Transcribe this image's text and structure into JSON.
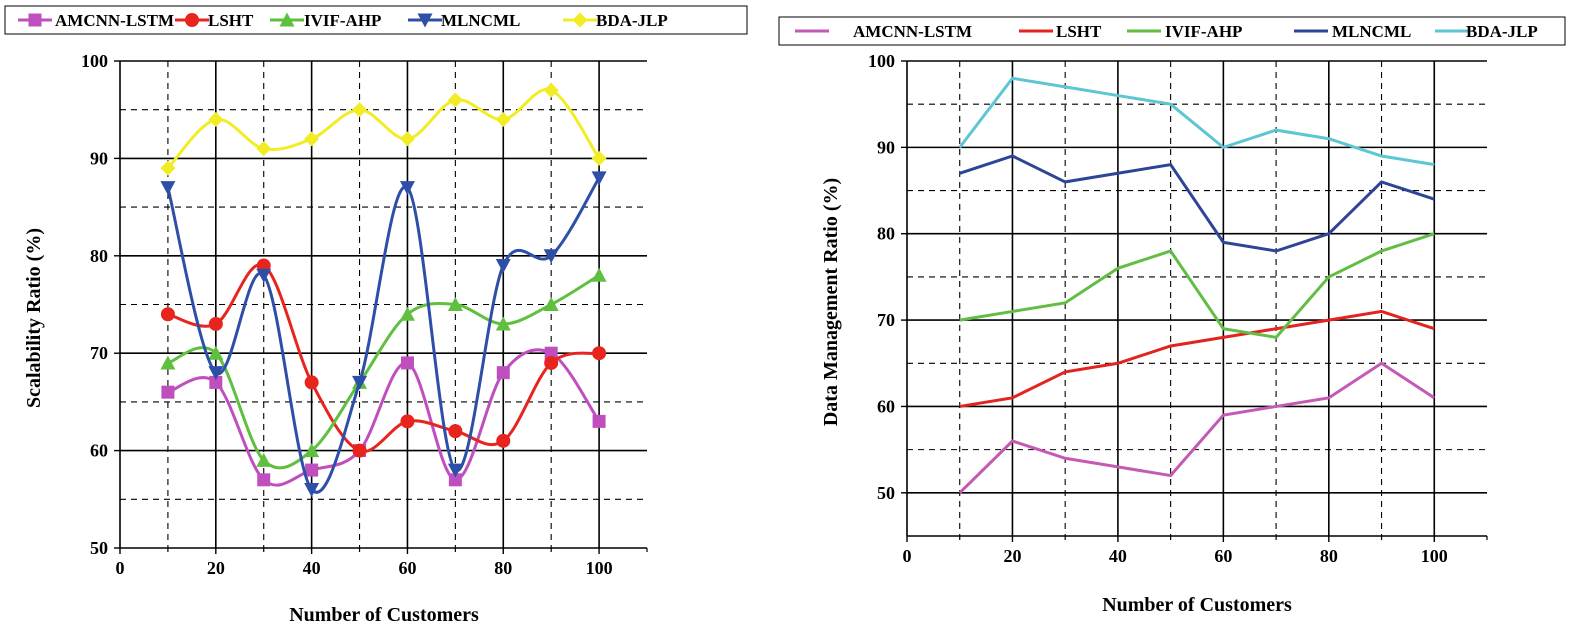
{
  "chart_data": [
    {
      "type": "line",
      "smooth": true,
      "title": "",
      "xlabel": "Number of Customers",
      "ylabel": "Scalability Ratio (%)",
      "xlim": [
        0,
        110
      ],
      "ylim": [
        50,
        100
      ],
      "xticks": [
        "0",
        "20",
        "40",
        "60",
        "80",
        "100"
      ],
      "xtick_values": [
        0,
        20,
        40,
        60,
        80,
        100
      ],
      "yticks": [
        "50",
        "60",
        "70",
        "80",
        "90",
        "100"
      ],
      "ytick_values": [
        50,
        60,
        70,
        80,
        90,
        100
      ],
      "grid": "solid major lines at 10-unit steps; dashed minor lines",
      "legend_position": "top",
      "x": [
        10,
        20,
        30,
        40,
        50,
        60,
        70,
        80,
        90,
        100
      ],
      "series": [
        {
          "name": "AMCNN-LSTM",
          "color": "#bf4fbf",
          "marker": "square",
          "values": [
            66,
            67,
            57,
            58,
            60,
            69,
            57,
            68,
            70,
            63
          ]
        },
        {
          "name": "LSHT",
          "color": "#e8241f",
          "marker": "circle",
          "values": [
            74,
            73,
            79,
            67,
            60,
            63,
            62,
            61,
            69,
            70
          ]
        },
        {
          "name": "IVIF-AHP",
          "color": "#5fbf3f",
          "marker": "triangle-up",
          "values": [
            69,
            70,
            59,
            60,
            67,
            74,
            75,
            73,
            75,
            78
          ]
        },
        {
          "name": "MLNCML",
          "color": "#2e4fa8",
          "marker": "triangle-down",
          "values": [
            87,
            68,
            78,
            56,
            67,
            87,
            58,
            79,
            80,
            88
          ]
        },
        {
          "name": "BDA-JLP",
          "color": "#f2ec24",
          "marker": "diamond",
          "values": [
            89,
            94,
            91,
            92,
            95,
            92,
            96,
            94,
            97,
            90
          ]
        }
      ]
    },
    {
      "type": "line",
      "smooth": false,
      "title": "",
      "xlabel": "Number of Customers",
      "ylabel": "Data Management Ratio (%)",
      "xlim": [
        0,
        110
      ],
      "ylim": [
        45,
        100
      ],
      "xticks": [
        "0",
        "20",
        "40",
        "60",
        "80",
        "100"
      ],
      "xtick_values": [
        0,
        20,
        40,
        60,
        80,
        100
      ],
      "yticks": [
        "50",
        "60",
        "70",
        "80",
        "90",
        "100"
      ],
      "ytick_values": [
        50,
        60,
        70,
        80,
        90,
        100
      ],
      "grid": "solid major lines at 10-unit steps; dashed minor lines",
      "legend_position": "top",
      "x": [
        10,
        20,
        30,
        40,
        50,
        60,
        70,
        80,
        90,
        100
      ],
      "series": [
        {
          "name": "AMCNN-LSTM",
          "color": "#c45ab4",
          "marker": "none",
          "values": [
            50,
            56,
            54,
            53,
            52,
            59,
            60,
            61,
            65,
            61
          ]
        },
        {
          "name": "LSHT",
          "color": "#e3231f",
          "marker": "none",
          "values": [
            60,
            61,
            64,
            65,
            67,
            68,
            69,
            70,
            71,
            69
          ]
        },
        {
          "name": "IVIF-AHP",
          "color": "#62bd45",
          "marker": "none",
          "values": [
            70,
            71,
            72,
            76,
            78,
            69,
            68,
            75,
            78,
            80
          ]
        },
        {
          "name": "MLNCML",
          "color": "#2e4597",
          "marker": "none",
          "values": [
            87,
            89,
            86,
            87,
            88,
            79,
            78,
            80,
            86,
            84
          ]
        },
        {
          "name": "BDA-JLP",
          "color": "#5ec6d3",
          "marker": "none",
          "values": [
            90,
            98,
            97,
            96,
            95,
            90,
            92,
            91,
            89,
            88
          ]
        }
      ]
    }
  ]
}
